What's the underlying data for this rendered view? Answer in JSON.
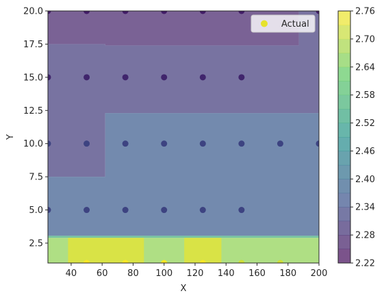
{
  "chart_data": {
    "type": "scatter",
    "title": "",
    "xlabel": "X",
    "ylabel": "Y",
    "xlim": [
      25,
      200
    ],
    "ylim": [
      1,
      20
    ],
    "xticks": [
      40,
      60,
      80,
      100,
      120,
      140,
      160,
      180,
      200
    ],
    "yticks": [
      2.5,
      5.0,
      7.5,
      10.0,
      12.5,
      15.0,
      17.5,
      20.0
    ],
    "ytick_labels": [
      "2.5",
      "5.0",
      "7.5",
      "10.0",
      "12.5",
      "15.0",
      "17.5",
      "20.0"
    ],
    "grid": false,
    "legend": {
      "position": "top-right",
      "entries": [
        "Actual"
      ]
    },
    "colorbar": {
      "min": 2.22,
      "max": 2.76,
      "levels": [
        2.22,
        2.25,
        2.28,
        2.31,
        2.34,
        2.37,
        2.4,
        2.43,
        2.46,
        2.49,
        2.52,
        2.55,
        2.58,
        2.61,
        2.64,
        2.67,
        2.7,
        2.73,
        2.76
      ],
      "tick_labels": [
        "2.22",
        "2.28",
        "2.34",
        "2.40",
        "2.46",
        "2.52",
        "2.58",
        "2.64",
        "2.70",
        "2.76"
      ]
    },
    "contour_regions": [
      {
        "value": 2.27,
        "polygon": [
          [
            25,
            17.5
          ],
          [
            62,
            17.5
          ],
          [
            62,
            17.4
          ],
          [
            187,
            17.4
          ],
          [
            187,
            20
          ],
          [
            25,
            20
          ]
        ]
      },
      {
        "value": 2.31,
        "polygon": [
          [
            25,
            17.5
          ],
          [
            62,
            17.5
          ],
          [
            62,
            17.4
          ],
          [
            187,
            17.4
          ],
          [
            187,
            20
          ],
          [
            200,
            20
          ],
          [
            200,
            12.3
          ],
          [
            150,
            12.3
          ],
          [
            62,
            12.3
          ],
          [
            62,
            7.5
          ],
          [
            25,
            7.5
          ]
        ]
      },
      {
        "value": 2.37,
        "polygon": [
          [
            25,
            7.5
          ],
          [
            62,
            7.5
          ],
          [
            62,
            12.3
          ],
          [
            200,
            12.3
          ],
          [
            200,
            3.05
          ],
          [
            25,
            3.05
          ]
        ]
      },
      {
        "value": 2.55,
        "polygon": [
          [
            25,
            3.05
          ],
          [
            200,
            3.05
          ],
          [
            200,
            2.9
          ],
          [
            25,
            2.9
          ]
        ]
      },
      {
        "value": 2.665,
        "polygon": [
          [
            25,
            2.9
          ],
          [
            200,
            2.9
          ],
          [
            200,
            1
          ],
          [
            25,
            1
          ]
        ]
      },
      {
        "value": 2.745,
        "polygon": [
          [
            38,
            2.9
          ],
          [
            87,
            2.9
          ],
          [
            87,
            1
          ],
          [
            38,
            1
          ]
        ]
      },
      {
        "value": 2.745,
        "polygon": [
          [
            113,
            2.9
          ],
          [
            137,
            2.9
          ],
          [
            137,
            1
          ],
          [
            113,
            1
          ]
        ]
      }
    ],
    "series": [
      {
        "name": "Actual",
        "points": [
          [
            25,
            20
          ],
          [
            50,
            20
          ],
          [
            75,
            20
          ],
          [
            100,
            20
          ],
          [
            125,
            20
          ],
          [
            150,
            20
          ],
          [
            200,
            20
          ],
          [
            25,
            15
          ],
          [
            50,
            15
          ],
          [
            75,
            15
          ],
          [
            100,
            15
          ],
          [
            125,
            15
          ],
          [
            150,
            15
          ],
          [
            25,
            10
          ],
          [
            50,
            10
          ],
          [
            75,
            10
          ],
          [
            100,
            10
          ],
          [
            125,
            10
          ],
          [
            150,
            10
          ],
          [
            175,
            10
          ],
          [
            200,
            10
          ],
          [
            25,
            5
          ],
          [
            50,
            5
          ],
          [
            75,
            5
          ],
          [
            100,
            5
          ],
          [
            125,
            5
          ],
          [
            150,
            5
          ],
          [
            50,
            1
          ],
          [
            75,
            1
          ],
          [
            100,
            1
          ],
          [
            125,
            1
          ],
          [
            150,
            1
          ],
          [
            175,
            1
          ]
        ],
        "values": [
          2.265,
          2.265,
          2.265,
          2.265,
          2.265,
          2.265,
          2.265,
          2.28,
          2.28,
          2.28,
          2.28,
          2.28,
          2.28,
          2.33,
          2.33,
          2.33,
          2.33,
          2.33,
          2.33,
          2.33,
          2.33,
          2.33,
          2.33,
          2.33,
          2.33,
          2.33,
          2.33,
          2.76,
          2.76,
          2.76,
          2.76,
          2.72,
          2.72
        ]
      }
    ]
  }
}
